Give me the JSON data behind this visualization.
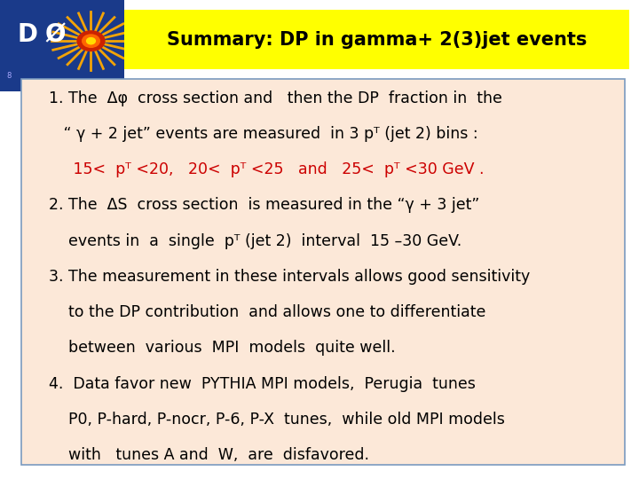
{
  "title": "Summary: DP in gamma+ 2(3)jet events",
  "title_bg": "#ffff00",
  "title_color": "#000000",
  "title_fontsize": 15,
  "box_bg": "#fce8d8",
  "box_edge": "#7a9abf",
  "fig_bg": "#ffffff",
  "lines": [
    {
      "text": "1. The  Δφ  cross section and   then the DP  fraction in  the",
      "color": "#000000",
      "indent": 0.05,
      "fontsize": 12.5
    },
    {
      "text": "   “ γ + 2 jet” events are measured  in 3 pᵀ (jet 2) bins :",
      "color": "#000000",
      "indent": 0.05,
      "fontsize": 12.5
    },
    {
      "text": "     15<  pᵀ <20,   20<  pᵀ <25   and   25<  pᵀ <30 GeV .",
      "color": "#cc0000",
      "indent": 0.05,
      "fontsize": 12.5
    },
    {
      "text": "2. The  ΔS  cross section  is measured in the “γ + 3 jet”",
      "color": "#000000",
      "indent": 0.05,
      "fontsize": 12.5
    },
    {
      "text": "    events in  a  single  pᵀ (jet 2)  interval  15 –30 GeV.",
      "color": "#000000",
      "indent": 0.05,
      "fontsize": 12.5
    },
    {
      "text": "3. The measurement in these intervals allows good sensitivity",
      "color": "#000000",
      "indent": 0.05,
      "fontsize": 12.5
    },
    {
      "text": "    to the DP contribution  and allows one to differentiate",
      "color": "#000000",
      "indent": 0.05,
      "fontsize": 12.5
    },
    {
      "text": "    between  various  MPI  models  quite well.",
      "color": "#000000",
      "indent": 0.05,
      "fontsize": 12.5
    },
    {
      "text": "4.  Data favor new  PYTHIA MPI models,  Perugia  tunes",
      "color": "#000000",
      "indent": 0.05,
      "fontsize": 12.5
    },
    {
      "text": "    P0, P-hard, P-nocr, P-6, P-X  tunes,  while old MPI models",
      "color": "#000000",
      "indent": 0.05,
      "fontsize": 12.5
    },
    {
      "text": "    with   tunes A and  W,  are  disfavored.",
      "color": "#000000",
      "indent": 0.05,
      "fontsize": 12.5
    }
  ],
  "logo_bg": "#1a3a8a",
  "logo_starburst_color": "#ffaa00",
  "logo_core_colors": [
    "#cc2200",
    "#ff6600",
    "#ffdd00"
  ],
  "logo_text_color": "#ffffff",
  "logo_dtext": "DØ"
}
